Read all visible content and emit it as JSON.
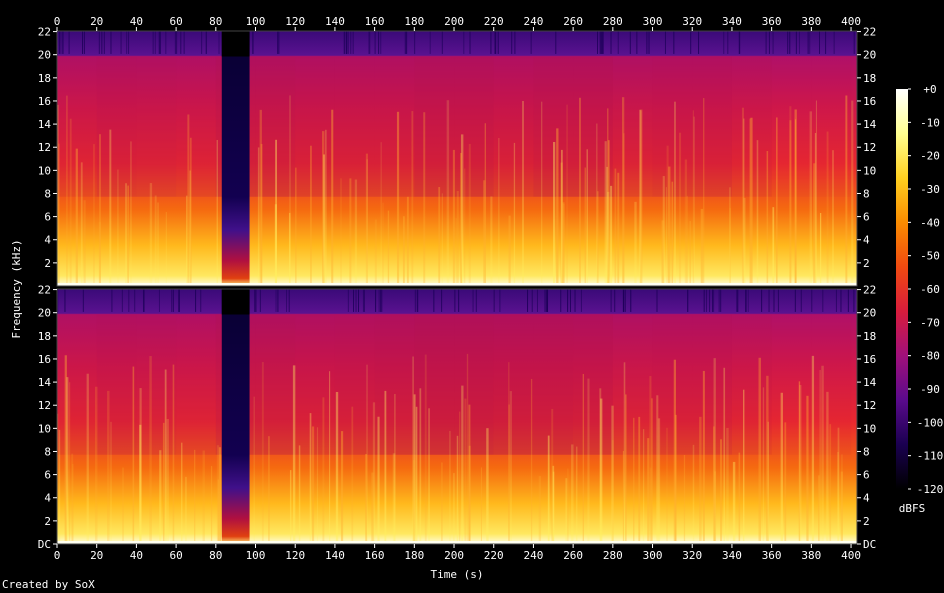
{
  "footer": "Created by SoX",
  "chart_data": {
    "type": "heatmap",
    "title": "",
    "xlabel": "Time (s)",
    "ylabel": "Frequency (kHz)",
    "xlim": [
      0,
      403
    ],
    "x_ticks": [
      0,
      20,
      40,
      60,
      80,
      100,
      120,
      140,
      160,
      180,
      200,
      220,
      240,
      260,
      280,
      300,
      320,
      340,
      360,
      380,
      400
    ],
    "ylim": [
      0,
      22.05
    ],
    "y_tick_labels": [
      "DC",
      "2",
      "4",
      "6",
      "8",
      "10",
      "12",
      "14",
      "16",
      "18",
      "20",
      "22"
    ],
    "channels": 2,
    "colorbar": {
      "label": "dBFS",
      "range": [
        -120,
        0
      ],
      "tick_labels": [
        "+0",
        "-10",
        "-20",
        "-30",
        "-40",
        "-50",
        "-60",
        "-70",
        "-80",
        "-90",
        "-100",
        "-110",
        "-120"
      ],
      "colors": [
        "#000000",
        "#1a0050",
        "#5a0a8c",
        "#a0107a",
        "#d81c3c",
        "#f04a10",
        "#fa8c00",
        "#ffd020",
        "#ffff90",
        "#ffffff"
      ]
    },
    "silence_segment_s": [
      83,
      97
    ],
    "lowpass_cutoff_khz": 20,
    "series": [
      {
        "x": [
          0,
          20,
          40,
          60,
          80,
          100,
          120,
          140,
          160,
          180,
          200,
          220,
          240,
          260,
          280,
          300,
          320,
          340,
          360,
          380,
          400
        ],
        "values": [
          -48,
          -50,
          -52,
          -49,
          -50,
          -55,
          -50,
          -52,
          -50,
          -52,
          -54,
          -52,
          -50,
          -56,
          -50,
          -50,
          -52,
          -50,
          -48,
          -46,
          -48
        ]
      },
      {
        "x": [
          0,
          20,
          40,
          60,
          80,
          100,
          120,
          140,
          160,
          180,
          200,
          220,
          240,
          260,
          280,
          300,
          320,
          340,
          360,
          380,
          400
        ],
        "values": [
          -48,
          -50,
          -52,
          -49,
          -50,
          -55,
          -50,
          -52,
          -52,
          -54,
          -56,
          -56,
          -52,
          -56,
          -50,
          -50,
          -52,
          -50,
          -48,
          -46,
          -48
        ]
      }
    ]
  }
}
